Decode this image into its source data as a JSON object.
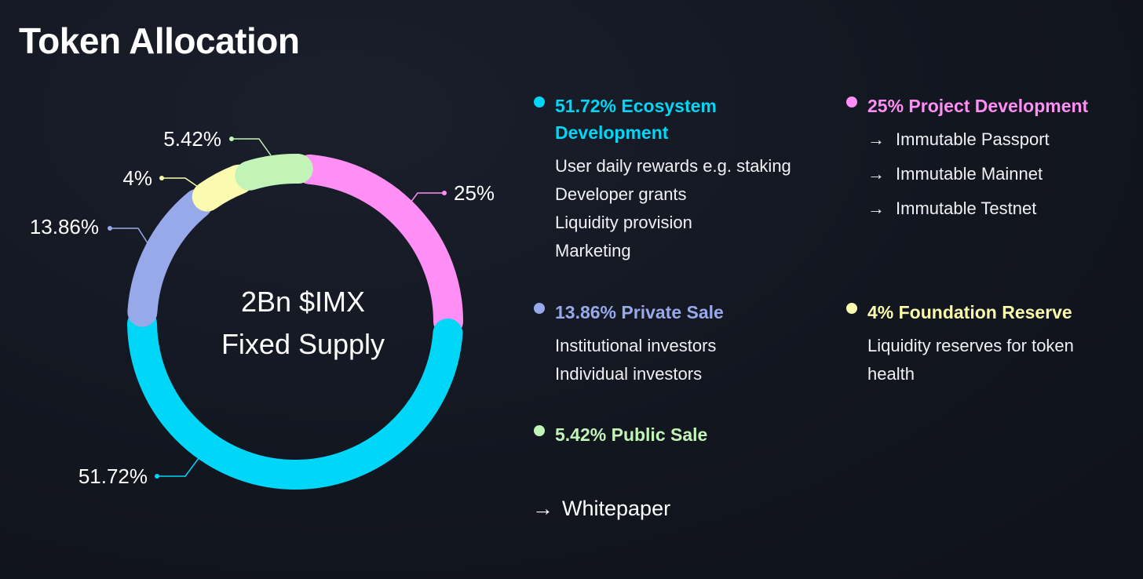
{
  "title": "Token Allocation",
  "center": {
    "line1": "2Bn $IMX",
    "line2": "Fixed Supply"
  },
  "chart_data": {
    "type": "pie",
    "title": "Token Allocation",
    "center_label": "2Bn $IMX Fixed Supply",
    "slices": [
      {
        "label": "Ecosystem Development",
        "value": 51.72,
        "value_label": "51.72%",
        "color": "#00d6f7"
      },
      {
        "label": "Project Development",
        "value": 25,
        "value_label": "25%",
        "color": "#ff8ef5"
      },
      {
        "label": "Private Sale",
        "value": 13.86,
        "value_label": "13.86%",
        "color": "#98a9ea"
      },
      {
        "label": "Foundation Reserve",
        "value": 4,
        "value_label": "4%",
        "color": "#fbfbb0"
      },
      {
        "label": "Public Sale",
        "value": 5.42,
        "value_label": "5.42%",
        "color": "#c3f4b7"
      }
    ]
  },
  "legend": {
    "ecosystem": {
      "title_line1": "51.72% Ecosystem",
      "title_line2": "Development",
      "items": [
        "User daily rewards e.g. staking",
        "Developer grants",
        "Liquidity provision",
        "Marketing"
      ]
    },
    "project": {
      "title": "25% Project Development",
      "items": [
        "Immutable Passport",
        "Immutable Mainnet",
        "Immutable Testnet"
      ]
    },
    "private": {
      "title": "13.86% Private Sale",
      "items": [
        "Institutional investors",
        "Individual investors"
      ]
    },
    "foundation": {
      "title": "4% Foundation Reserve",
      "items": [
        "Liquidity reserves for token",
        "health"
      ]
    },
    "public": {
      "title": "5.42% Public Sale"
    }
  },
  "arrow_glyph": "→",
  "whitepaper_label": "Whitepaper"
}
